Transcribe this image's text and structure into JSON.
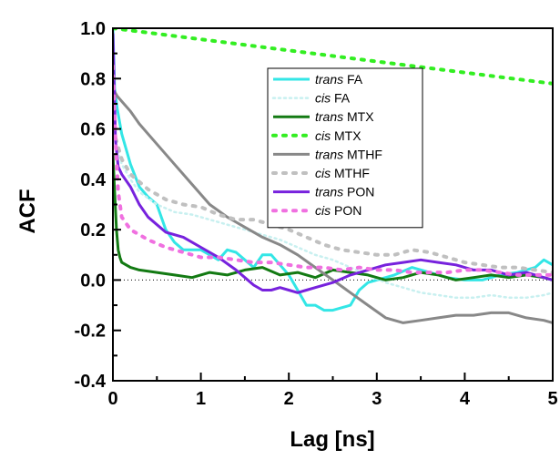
{
  "chart_data": {
    "type": "line",
    "xlabel": "Lag [ns]",
    "ylabel": "ACF",
    "xlim": [
      0,
      5
    ],
    "ylim": [
      -0.4,
      1.0
    ],
    "xticks": [
      "0",
      "1",
      "2",
      "3",
      "4",
      "5"
    ],
    "yticks": [
      "-0.4",
      "-0.2",
      "0.0",
      "0.2",
      "0.4",
      "0.6",
      "0.8",
      "1.0"
    ],
    "grid": false,
    "zero_line": true,
    "legend_position": "top-right",
    "series": [
      {
        "name": "trans FA",
        "label_italic": "trans",
        "label_rest": " FA",
        "color": "#33e6e6",
        "dash": "solid",
        "x": [
          0,
          0.02,
          0.05,
          0.1,
          0.2,
          0.3,
          0.4,
          0.5,
          0.6,
          0.7,
          0.8,
          0.9,
          1.0,
          1.1,
          1.2,
          1.3,
          1.4,
          1.5,
          1.6,
          1.7,
          1.8,
          1.9,
          2.0,
          2.1,
          2.2,
          2.3,
          2.4,
          2.5,
          2.6,
          2.7,
          2.8,
          2.9,
          3.0,
          3.2,
          3.4,
          3.6,
          3.8,
          4.0,
          4.2,
          4.4,
          4.6,
          4.8,
          4.9,
          5.0
        ],
        "y": [
          1.0,
          0.76,
          0.68,
          0.58,
          0.46,
          0.37,
          0.33,
          0.3,
          0.2,
          0.15,
          0.12,
          0.12,
          0.12,
          0.1,
          0.08,
          0.12,
          0.11,
          0.08,
          0.05,
          0.1,
          0.1,
          0.06,
          0.02,
          -0.04,
          -0.1,
          -0.1,
          -0.12,
          -0.12,
          -0.11,
          -0.1,
          -0.04,
          -0.01,
          0.0,
          0.02,
          0.05,
          0.03,
          0.01,
          0.0,
          0.0,
          0.02,
          0.03,
          0.05,
          0.08,
          0.06
        ]
      },
      {
        "name": "cis FA",
        "label_italic": "cis",
        "label_rest": " FA",
        "color": "#c8f0f0",
        "dash": "dot",
        "x": [
          0,
          0.05,
          0.1,
          0.2,
          0.3,
          0.5,
          0.7,
          0.9,
          1.1,
          1.3,
          1.5,
          1.7,
          1.9,
          2.1,
          2.3,
          2.5,
          2.7,
          2.9,
          3.1,
          3.3,
          3.5,
          3.7,
          3.9,
          4.1,
          4.3,
          4.5,
          4.7,
          4.9,
          5.0
        ],
        "y": [
          0.62,
          0.52,
          0.46,
          0.4,
          0.35,
          0.3,
          0.27,
          0.26,
          0.24,
          0.22,
          0.2,
          0.18,
          0.16,
          0.13,
          0.1,
          0.08,
          0.05,
          0.02,
          -0.01,
          -0.03,
          -0.05,
          -0.06,
          -0.07,
          -0.07,
          -0.06,
          -0.07,
          -0.07,
          -0.06,
          -0.05
        ]
      },
      {
        "name": "trans MTX",
        "label_italic": "trans",
        "label_rest": " MTX",
        "color": "#137a13",
        "dash": "solid",
        "x": [
          0,
          0.02,
          0.04,
          0.06,
          0.08,
          0.1,
          0.15,
          0.2,
          0.3,
          0.5,
          0.7,
          0.9,
          1.1,
          1.3,
          1.5,
          1.7,
          1.9,
          2.1,
          2.3,
          2.5,
          2.7,
          2.9,
          3.1,
          3.3,
          3.5,
          3.7,
          3.9,
          4.1,
          4.3,
          4.5,
          4.7,
          4.9,
          5.0
        ],
        "y": [
          0.5,
          0.35,
          0.2,
          0.12,
          0.09,
          0.07,
          0.06,
          0.05,
          0.04,
          0.03,
          0.02,
          0.01,
          0.03,
          0.02,
          0.04,
          0.05,
          0.02,
          0.03,
          0.01,
          0.04,
          0.03,
          0.02,
          0.0,
          0.01,
          0.03,
          0.02,
          0.0,
          0.01,
          0.02,
          0.01,
          0.02,
          0.01,
          0.0
        ]
      },
      {
        "name": "cis MTX",
        "label_italic": "cis",
        "label_rest": " MTX",
        "color": "#33ee22",
        "dash": "dot-thick",
        "x": [
          0,
          5.0
        ],
        "y": [
          1.0,
          0.78
        ]
      },
      {
        "name": "trans MTHF",
        "label_italic": "trans",
        "label_rest": " MTHF",
        "color": "#888888",
        "dash": "solid",
        "x": [
          0,
          0.05,
          0.1,
          0.2,
          0.3,
          0.5,
          0.7,
          0.9,
          1.1,
          1.3,
          1.5,
          1.7,
          1.9,
          2.1,
          2.3,
          2.5,
          2.7,
          2.9,
          3.1,
          3.3,
          3.5,
          3.7,
          3.9,
          4.1,
          4.3,
          4.5,
          4.7,
          4.9,
          5.0
        ],
        "y": [
          0.76,
          0.73,
          0.71,
          0.67,
          0.62,
          0.54,
          0.46,
          0.38,
          0.3,
          0.25,
          0.21,
          0.17,
          0.14,
          0.1,
          0.05,
          0.0,
          -0.05,
          -0.1,
          -0.15,
          -0.17,
          -0.16,
          -0.15,
          -0.14,
          -0.14,
          -0.13,
          -0.13,
          -0.15,
          -0.16,
          -0.17
        ]
      },
      {
        "name": "cis MTHF",
        "label_italic": "cis",
        "label_rest": " MTHF",
        "color": "#c0c0c0",
        "dash": "dot-thick",
        "x": [
          0,
          0.05,
          0.1,
          0.2,
          0.4,
          0.6,
          0.8,
          1.0,
          1.2,
          1.4,
          1.6,
          1.8,
          2.0,
          2.2,
          2.4,
          2.6,
          2.8,
          3.0,
          3.2,
          3.4,
          3.6,
          3.8,
          4.0,
          4.2,
          4.4,
          4.6,
          4.8,
          5.0
        ],
        "y": [
          0.6,
          0.54,
          0.48,
          0.42,
          0.36,
          0.32,
          0.3,
          0.29,
          0.26,
          0.24,
          0.24,
          0.22,
          0.2,
          0.17,
          0.14,
          0.12,
          0.11,
          0.1,
          0.1,
          0.12,
          0.11,
          0.09,
          0.07,
          0.06,
          0.05,
          0.05,
          0.04,
          0.03
        ]
      },
      {
        "name": "trans PON",
        "label_italic": "trans",
        "label_rest": " PON",
        "color": "#7722dd",
        "dash": "solid",
        "x": [
          0,
          0.03,
          0.06,
          0.1,
          0.2,
          0.3,
          0.4,
          0.6,
          0.8,
          1.0,
          1.2,
          1.4,
          1.5,
          1.6,
          1.7,
          1.8,
          1.9,
          2.0,
          2.1,
          2.2,
          2.3,
          2.5,
          2.7,
          2.9,
          3.1,
          3.3,
          3.5,
          3.7,
          3.9,
          4.1,
          4.3,
          4.5,
          4.7,
          4.9,
          5.0
        ],
        "y": [
          0.98,
          0.55,
          0.45,
          0.42,
          0.37,
          0.3,
          0.25,
          0.19,
          0.17,
          0.13,
          0.09,
          0.04,
          0.01,
          -0.02,
          -0.04,
          -0.04,
          -0.03,
          -0.04,
          -0.05,
          -0.04,
          -0.03,
          -0.01,
          0.02,
          0.04,
          0.06,
          0.07,
          0.08,
          0.07,
          0.06,
          0.04,
          0.04,
          0.02,
          0.03,
          0.01,
          0.0
        ]
      },
      {
        "name": "cis PON",
        "label_italic": "cis",
        "label_rest": " PON",
        "color": "#f070e0",
        "dash": "dot-thick",
        "x": [
          0,
          0.03,
          0.06,
          0.1,
          0.2,
          0.4,
          0.6,
          0.8,
          1.0,
          1.2,
          1.4,
          1.6,
          1.8,
          2.0,
          2.2,
          2.4,
          2.6,
          2.8,
          3.0,
          3.2,
          3.4,
          3.6,
          3.8,
          4.0,
          4.2,
          4.4,
          4.6,
          4.8,
          5.0
        ],
        "y": [
          0.85,
          0.55,
          0.35,
          0.25,
          0.2,
          0.16,
          0.13,
          0.11,
          0.09,
          0.09,
          0.08,
          0.07,
          0.07,
          0.06,
          0.05,
          0.05,
          0.04,
          0.05,
          0.04,
          0.04,
          0.03,
          0.03,
          0.03,
          0.04,
          0.04,
          0.03,
          0.02,
          0.02,
          0.02
        ]
      }
    ]
  }
}
